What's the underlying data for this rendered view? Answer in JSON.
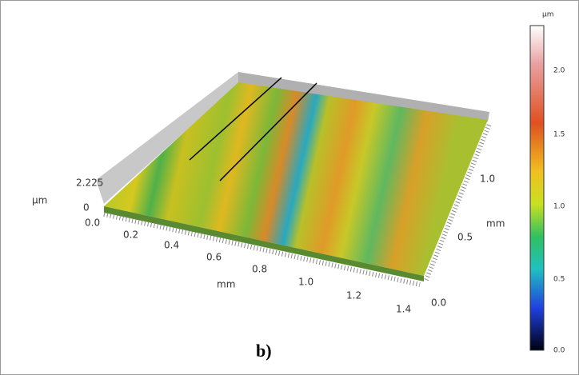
{
  "colorbar": {
    "unit": "µm",
    "labels": [
      "2.0",
      "1.5",
      "1.0",
      "0.5",
      "0.0"
    ]
  },
  "z_axis": {
    "labels": [
      "2.225",
      "0"
    ],
    "unit": "µm"
  },
  "x_axis": {
    "labels": [
      "0.0",
      "0.2",
      "0.4",
      "0.6",
      "0.8",
      "1.0",
      "1.2",
      "1.4"
    ],
    "unit": "mm"
  },
  "y_axis": {
    "labels": [
      "0.0",
      "0.5",
      "1.0"
    ],
    "unit": "mm"
  },
  "caption": "b)"
}
